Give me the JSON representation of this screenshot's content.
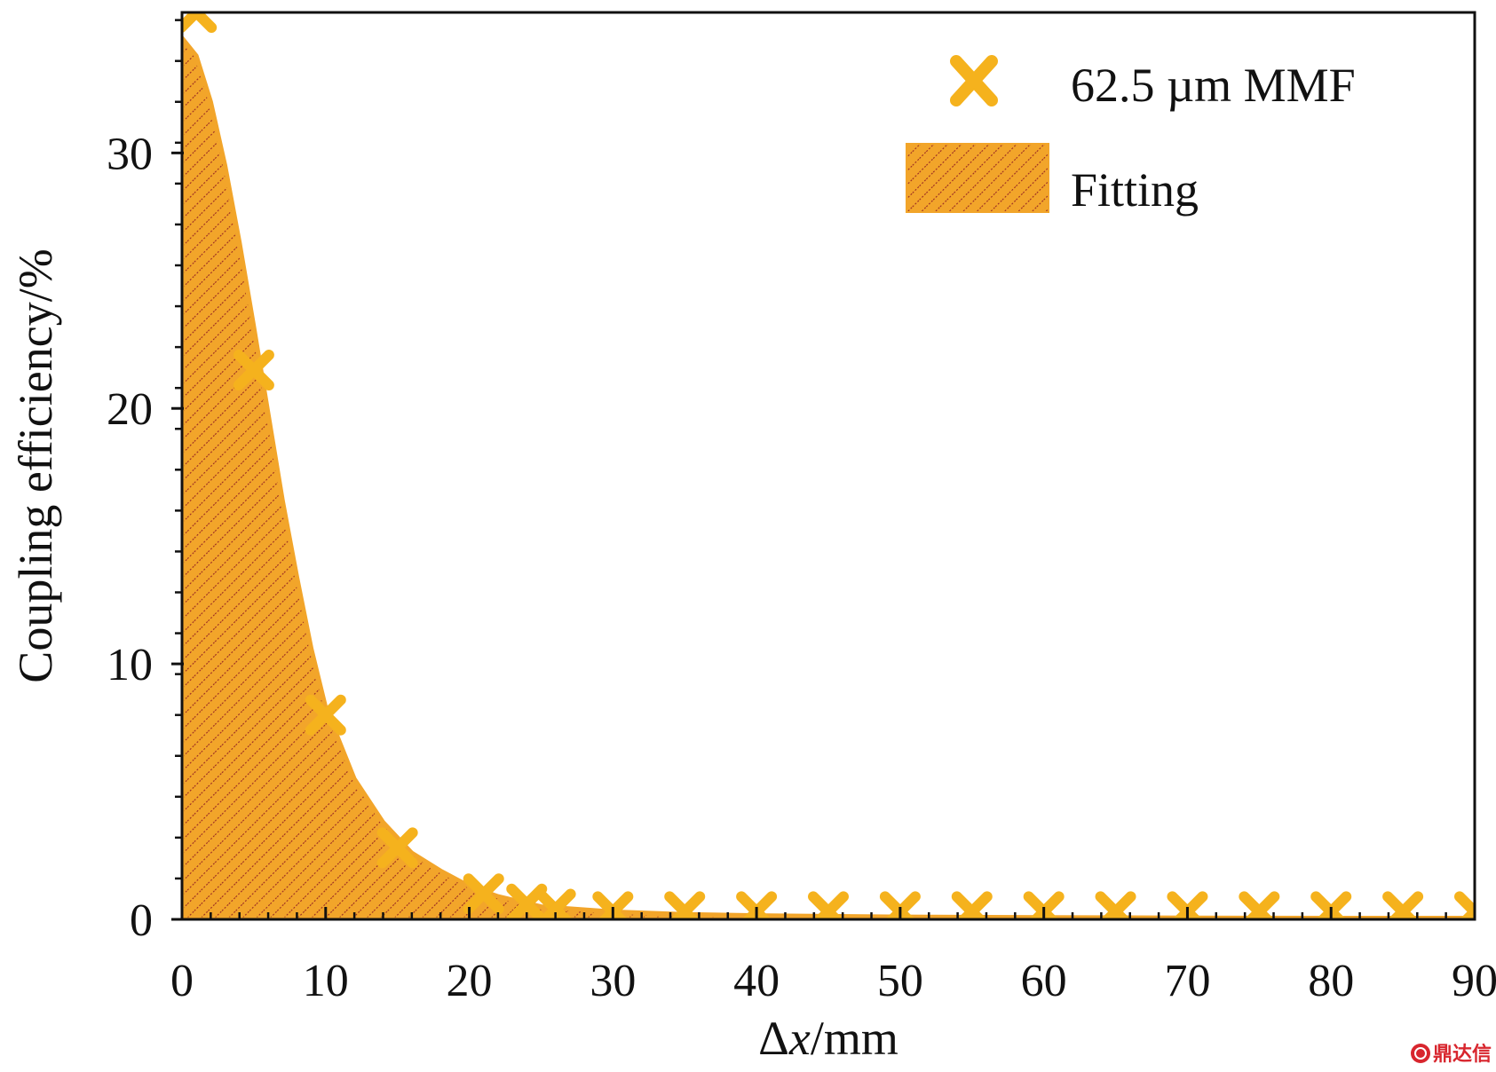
{
  "chart_data": {
    "type": "scatter",
    "title": "",
    "xlabel_prefix": "Δ",
    "xlabel_var": "x",
    "xlabel_unit": "/mm",
    "ylabel": "Coupling efficiency/%",
    "xlim": [
      0,
      90
    ],
    "ylim": [
      0,
      35.5
    ],
    "xticks": [
      0,
      10,
      20,
      30,
      40,
      50,
      60,
      70,
      80,
      90
    ],
    "yticks": [
      0,
      10,
      20,
      30
    ],
    "legend_position": "top-right",
    "series": [
      {
        "name": "62.5 µm MMF",
        "kind": "markers",
        "marker": "x",
        "x": [
          1,
          5,
          10,
          15,
          21,
          24,
          26,
          30,
          35,
          40,
          45,
          50,
          55,
          60,
          65,
          70,
          75,
          80,
          85,
          90
        ],
        "y": [
          35.5,
          21.5,
          8.0,
          2.8,
          1.0,
          0.6,
          0.4,
          0.3,
          0.3,
          0.3,
          0.3,
          0.3,
          0.3,
          0.3,
          0.3,
          0.3,
          0.3,
          0.3,
          0.3,
          0.3
        ]
      },
      {
        "name": "Fitting",
        "kind": "hatched-area",
        "x": [
          0,
          1,
          2,
          3,
          4,
          5,
          6,
          7,
          8,
          9,
          10,
          12,
          14,
          16,
          18,
          20,
          22,
          25,
          30,
          35,
          40,
          50,
          60,
          70,
          80,
          90
        ],
        "y": [
          34.5,
          33.8,
          32.0,
          29.5,
          26.5,
          23.2,
          19.8,
          16.4,
          13.4,
          10.6,
          8.3,
          5.5,
          3.8,
          2.6,
          1.9,
          1.3,
          0.9,
          0.5,
          0.3,
          0.2,
          0.15,
          0.1,
          0.08,
          0.06,
          0.05,
          0.05
        ]
      }
    ],
    "colors": {
      "marker": "#f5b21d",
      "fill": "#f2a52a",
      "hatch": "#9a2a22",
      "axis": "#111111"
    }
  },
  "watermark": {
    "icon": "seal-icon",
    "text": "鼎达信"
  }
}
